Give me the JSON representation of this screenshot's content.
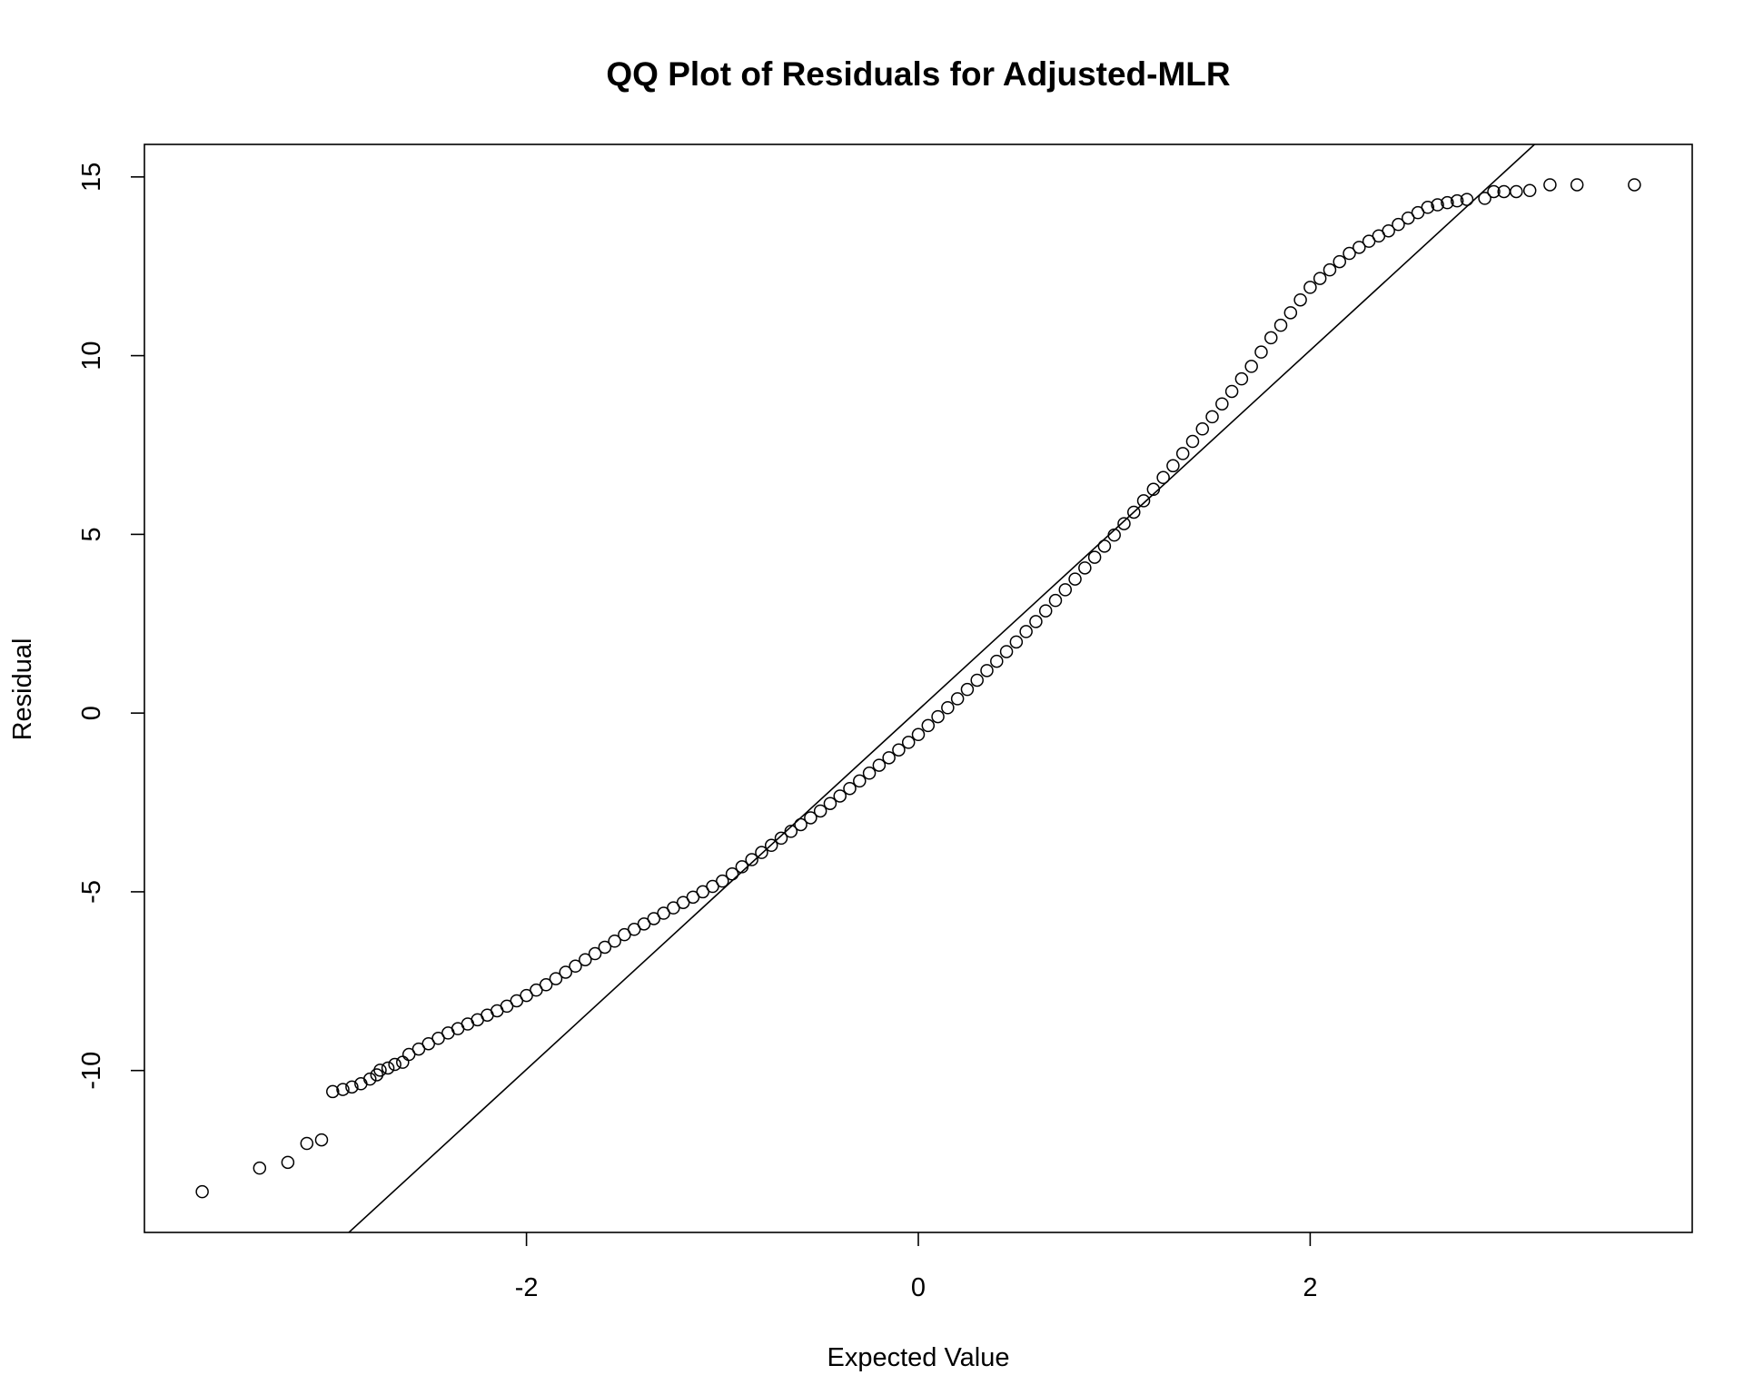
{
  "chart_data": {
    "type": "scatter",
    "title": "QQ Plot of Residuals for Adjusted-MLR",
    "x_label": "Expected Value",
    "y_label": "Residual",
    "xlim": [
      -3.95,
      3.95
    ],
    "ylim": [
      -14.53,
      15.91
    ],
    "xticks": [
      -2,
      0,
      2
    ],
    "yticks": [
      -10,
      -5,
      0,
      5,
      10,
      15
    ],
    "color": "#000000",
    "reference_line": {
      "intercept": 0.09,
      "slope": 5.03
    },
    "x": [
      -3.655,
      -3.362,
      -3.218,
      -3.121,
      -3.046,
      -2.989,
      -2.937,
      -2.891,
      -2.845,
      -2.799,
      -2.764,
      -2.747,
      -2.707,
      -2.672,
      -2.632,
      -2.6,
      -2.55,
      -2.5,
      -2.45,
      -2.4,
      -2.35,
      -2.3,
      -2.25,
      -2.2,
      -2.15,
      -2.1,
      -2.05,
      -2.0,
      -1.95,
      -1.9,
      -1.85,
      -1.8,
      -1.75,
      -1.7,
      -1.65,
      -1.6,
      -1.55,
      -1.5,
      -1.45,
      -1.4,
      -1.35,
      -1.3,
      -1.25,
      -1.2,
      -1.15,
      -1.1,
      -1.05,
      -1.0,
      -0.95,
      -0.9,
      -0.85,
      -0.8,
      -0.75,
      -0.7,
      -0.65,
      -0.6,
      -0.55,
      -0.5,
      -0.45,
      -0.4,
      -0.35,
      -0.3,
      -0.25,
      -0.2,
      -0.15,
      -0.1,
      -0.05,
      0,
      0.05,
      0.1,
      0.15,
      0.2,
      0.25,
      0.3,
      0.35,
      0.4,
      0.45,
      0.5,
      0.55,
      0.6,
      0.65,
      0.7,
      0.75,
      0.8,
      0.85,
      0.9,
      0.95,
      1.0,
      1.05,
      1.1,
      1.15,
      1.2,
      1.25,
      1.3,
      1.35,
      1.4,
      1.45,
      1.5,
      1.55,
      1.6,
      1.65,
      1.7,
      1.75,
      1.8,
      1.85,
      1.9,
      1.95,
      2.0,
      2.05,
      2.1,
      2.15,
      2.2,
      2.25,
      2.3,
      2.35,
      2.4,
      2.45,
      2.5,
      2.55,
      2.6,
      2.65,
      2.7,
      2.75,
      2.8,
      2.891,
      2.937,
      2.989,
      3.052,
      3.121,
      3.224,
      3.362,
      3.655
    ],
    "values": [
      -13.39,
      -12.73,
      -12.57,
      -12.04,
      -11.94,
      -10.59,
      -10.53,
      -10.46,
      -10.37,
      -10.24,
      -10.12,
      -9.99,
      -9.93,
      -9.83,
      -9.77,
      -9.55,
      -9.4,
      -9.25,
      -9.1,
      -8.95,
      -8.83,
      -8.7,
      -8.58,
      -8.45,
      -8.33,
      -8.2,
      -8.05,
      -7.9,
      -7.75,
      -7.6,
      -7.43,
      -7.25,
      -7.08,
      -6.9,
      -6.73,
      -6.55,
      -6.38,
      -6.2,
      -6.05,
      -5.9,
      -5.75,
      -5.6,
      -5.45,
      -5.3,
      -5.15,
      -5.0,
      -4.85,
      -4.7,
      -4.5,
      -4.3,
      -4.1,
      -3.9,
      -3.7,
      -3.5,
      -3.31,
      -3.12,
      -2.93,
      -2.74,
      -2.53,
      -2.32,
      -2.11,
      -1.9,
      -1.68,
      -1.46,
      -1.25,
      -1.03,
      -0.82,
      -0.6,
      -0.35,
      -0.1,
      0.15,
      0.4,
      0.66,
      0.92,
      1.19,
      1.45,
      1.72,
      1.99,
      2.28,
      2.56,
      2.86,
      3.15,
      3.45,
      3.75,
      4.06,
      4.36,
      4.67,
      4.98,
      5.3,
      5.62,
      5.94,
      6.26,
      6.59,
      6.92,
      7.26,
      7.6,
      7.95,
      8.29,
      8.65,
      9.0,
      9.35,
      9.7,
      10.1,
      10.5,
      10.85,
      11.2,
      11.56,
      11.91,
      12.16,
      12.4,
      12.63,
      12.86,
      13.03,
      13.2,
      13.35,
      13.49,
      13.67,
      13.85,
      14.0,
      14.15,
      14.22,
      14.28,
      14.33,
      14.37,
      14.4,
      14.59,
      14.59,
      14.59,
      14.62,
      14.78,
      14.78,
      14.78
    ]
  }
}
